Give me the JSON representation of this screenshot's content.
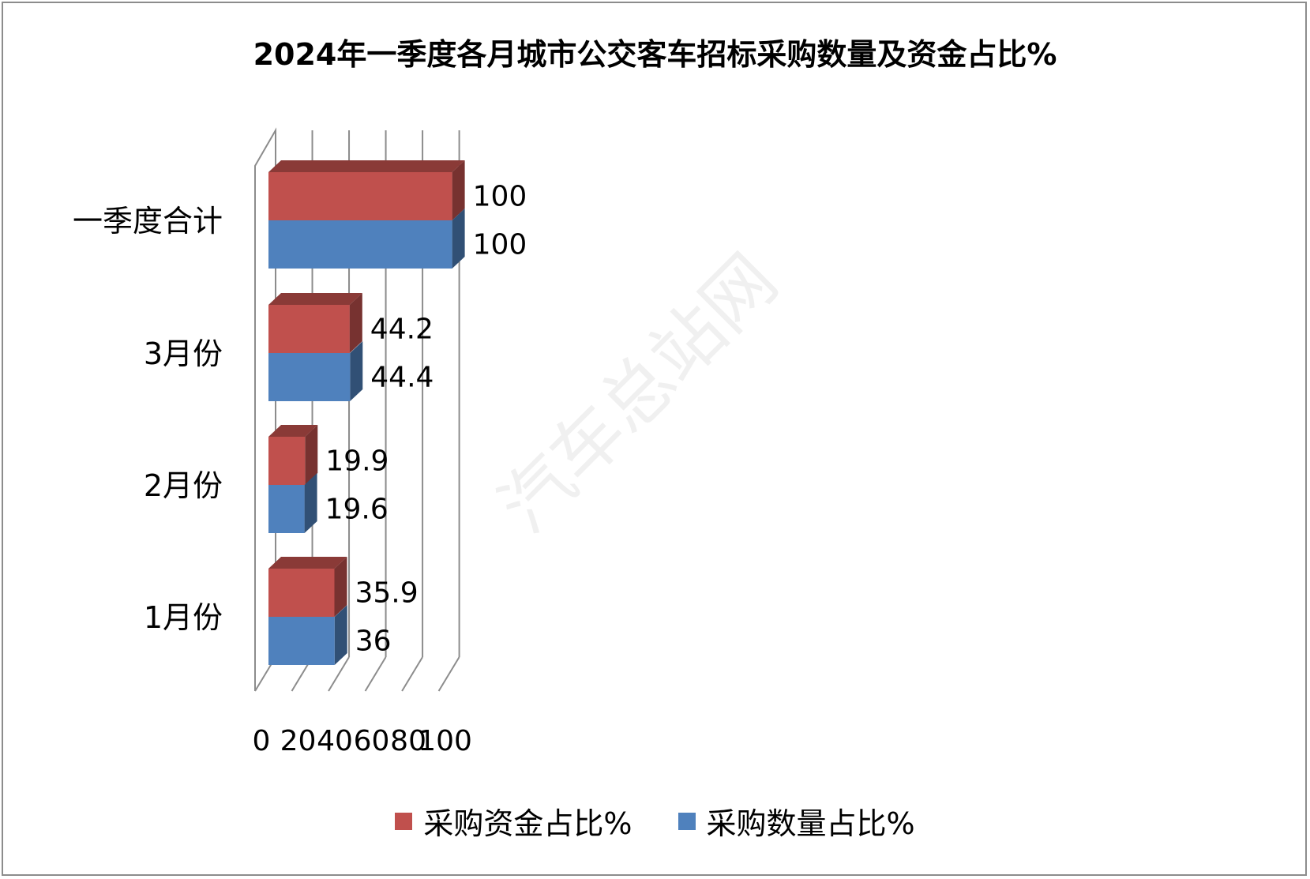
{
  "chart_data": {
    "type": "bar",
    "orientation": "horizontal",
    "three_d": true,
    "title": "2024年一季度各月城市公交客车招标采购数量及资金占比%",
    "categories": [
      "1月份",
      "2月份",
      "3月份",
      "一季度合计"
    ],
    "series": [
      {
        "name": "采购资金占比%",
        "values": [
          35.9,
          19.9,
          44.2,
          100
        ],
        "color": "#c0504d"
      },
      {
        "name": "采购数量占比%",
        "values": [
          36,
          19.6,
          44.4,
          100
        ],
        "color": "#4f81bd"
      }
    ],
    "xlim": [
      0,
      100
    ],
    "xticks": [
      "0",
      "20",
      "40",
      "60",
      "80",
      "100"
    ],
    "grid": true,
    "legend_position": "bottom",
    "watermark": "汽车总站网"
  }
}
